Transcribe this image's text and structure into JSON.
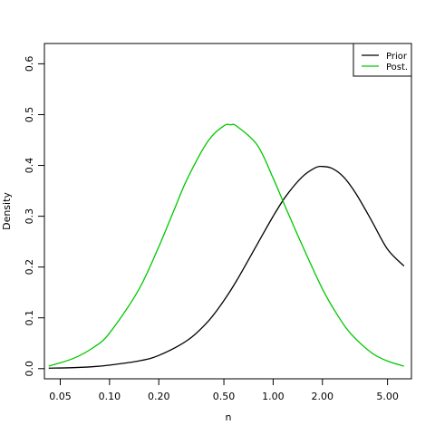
{
  "chart_data": {
    "type": "line",
    "title": "",
    "xlabel": "n",
    "ylabel": "Density",
    "x_scale": "log",
    "xlim": [
      0.04,
      7.0
    ],
    "ylim": [
      -0.02,
      0.64
    ],
    "x_ticks": [
      0.05,
      0.1,
      0.2,
      0.5,
      1.0,
      2.0,
      5.0
    ],
    "x_tick_labels": [
      "0.05",
      "0.10",
      "0.20",
      "0.50",
      "1.00",
      "2.00",
      "5.00"
    ],
    "y_ticks": [
      0.0,
      0.1,
      0.2,
      0.3,
      0.4,
      0.5,
      0.6
    ],
    "y_tick_labels": [
      "0.0",
      "0.1",
      "0.2",
      "0.3",
      "0.4",
      "0.5",
      "0.6"
    ],
    "grid": false,
    "legend_position": "top-right",
    "series": [
      {
        "name": "Prior",
        "color": "#000000",
        "x": [
          0.0425,
          0.06,
          0.08,
          0.1,
          0.15,
          0.2,
          0.3,
          0.4,
          0.5,
          0.6,
          0.8,
          1.0,
          1.2,
          1.5,
          1.8,
          2.0,
          2.3,
          2.7,
          3.2,
          4.0,
          5.0,
          6.3
        ],
        "y": [
          0.001,
          0.002,
          0.004,
          0.007,
          0.015,
          0.026,
          0.056,
          0.093,
          0.134,
          0.174,
          0.245,
          0.3,
          0.34,
          0.377,
          0.395,
          0.398,
          0.394,
          0.377,
          0.345,
          0.291,
          0.235,
          0.202
        ]
      },
      {
        "name": "Post.",
        "color": "#00c800",
        "x": [
          0.0425,
          0.06,
          0.08,
          0.1,
          0.15,
          0.2,
          0.25,
          0.3,
          0.4,
          0.5,
          0.55,
          0.6,
          0.8,
          1.0,
          1.2,
          1.5,
          2.0,
          2.5,
          3.0,
          4.0,
          5.0,
          6.3
        ],
        "y": [
          0.005,
          0.02,
          0.042,
          0.07,
          0.154,
          0.24,
          0.315,
          0.375,
          0.448,
          0.478,
          0.48,
          0.477,
          0.44,
          0.375,
          0.315,
          0.244,
          0.157,
          0.103,
          0.068,
          0.031,
          0.015,
          0.005
        ]
      }
    ]
  }
}
